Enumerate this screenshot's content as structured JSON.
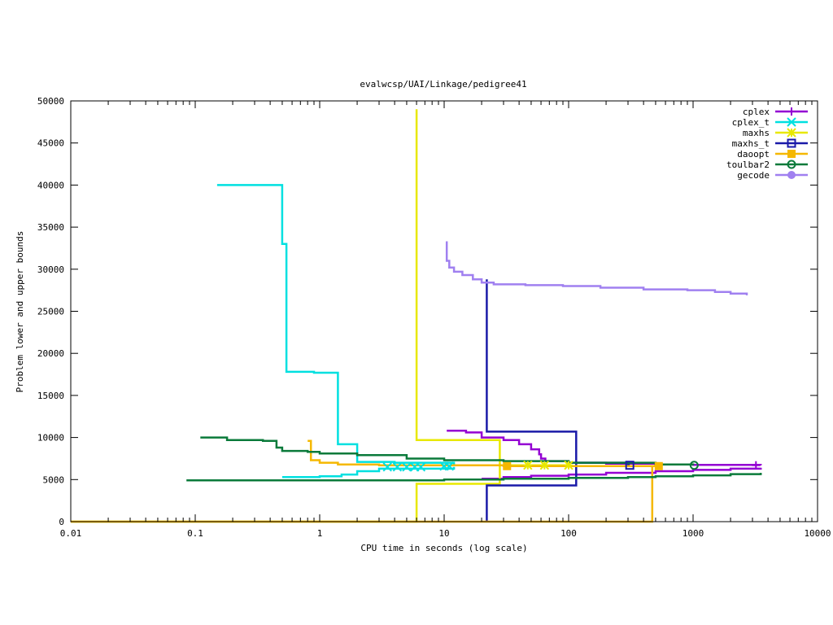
{
  "chart_data": {
    "type": "line",
    "title": "evalwcsp/UAI/Linkage/pedigree41",
    "xlabel": "CPU time in seconds (log scale)",
    "ylabel": "Problem lower and upper bounds",
    "xscale": "log",
    "xlim": [
      0.01,
      10000
    ],
    "ylim": [
      0,
      50000
    ],
    "xticks": [
      0.01,
      0.1,
      1,
      10,
      100,
      1000,
      10000
    ],
    "xtick_labels": [
      "0.01",
      "0.1",
      "1",
      "10",
      "100",
      "1000",
      "10000"
    ],
    "yticks": [
      0,
      5000,
      10000,
      15000,
      20000,
      25000,
      30000,
      35000,
      40000,
      45000,
      50000
    ],
    "ytick_labels": [
      "0",
      "5000",
      "10000",
      "15000",
      "20000",
      "25000",
      "30000",
      "35000",
      "40000",
      "45000",
      "50000"
    ],
    "grid": false,
    "legend_position": "top-right",
    "series": [
      {
        "name": "cplex",
        "color": "#9400d3",
        "marker": "plus",
        "upper": [
          [
            10.5,
            10800
          ],
          [
            15,
            10600
          ],
          [
            20,
            10000
          ],
          [
            30,
            9700
          ],
          [
            40,
            9200
          ],
          [
            50,
            8600
          ],
          [
            58,
            8000
          ],
          [
            60,
            7500
          ],
          [
            65,
            7200
          ],
          [
            100,
            7000
          ],
          [
            200,
            6900
          ],
          [
            500,
            6800
          ],
          [
            1000,
            6750
          ],
          [
            3500,
            6700
          ]
        ],
        "lower": [
          [
            20,
            5100
          ],
          [
            30,
            5300
          ],
          [
            50,
            5450
          ],
          [
            100,
            5600
          ],
          [
            200,
            5800
          ],
          [
            500,
            6000
          ],
          [
            1000,
            6150
          ],
          [
            2000,
            6300
          ],
          [
            3500,
            6400
          ]
        ],
        "markers": [
          [
            3200,
            6700
          ]
        ]
      },
      {
        "name": "cplex_t",
        "color": "#00e0e0",
        "marker": "x",
        "upper": [
          [
            0.15,
            40000
          ],
          [
            0.5,
            40000
          ],
          [
            0.5,
            33000
          ],
          [
            0.54,
            33000
          ],
          [
            0.54,
            17800
          ],
          [
            0.9,
            17800
          ],
          [
            0.9,
            17700
          ],
          [
            1.4,
            17700
          ],
          [
            1.4,
            9200
          ],
          [
            2,
            9200
          ],
          [
            2,
            7100
          ],
          [
            4,
            7000
          ],
          [
            12,
            6800
          ]
        ],
        "lower": [
          [
            0.5,
            5300
          ],
          [
            1,
            5400
          ],
          [
            1.5,
            5600
          ],
          [
            2,
            6000
          ],
          [
            3,
            6300
          ],
          [
            12,
            6500
          ]
        ],
        "markers": [
          [
            3.5,
            6500
          ],
          [
            4.2,
            6500
          ],
          [
            5,
            6500
          ],
          [
            5.8,
            6500
          ],
          [
            6.5,
            6500
          ],
          [
            10,
            6600
          ],
          [
            11,
            6600
          ]
        ]
      },
      {
        "name": "maxhs",
        "color": "#e8e800",
        "marker": "star",
        "upper": [
          [
            6,
            49000
          ],
          [
            6,
            9700
          ],
          [
            28,
            9700
          ],
          [
            28,
            6700
          ],
          [
            100,
            6700
          ]
        ],
        "lower": [
          [
            0.01,
            0
          ],
          [
            6,
            0
          ],
          [
            6,
            4500
          ],
          [
            28,
            4500
          ],
          [
            28,
            6700
          ]
        ],
        "markers": [
          [
            47,
            6700
          ],
          [
            64,
            6700
          ],
          [
            100,
            6700
          ]
        ]
      },
      {
        "name": "maxhs_t",
        "color": "#1a1aa8",
        "marker": "square",
        "upper": [
          [
            22,
            28800
          ],
          [
            22,
            10700
          ],
          [
            115,
            10700
          ],
          [
            115,
            7000
          ],
          [
            300,
            6800
          ],
          [
            310,
            6800
          ]
        ],
        "lower": [
          [
            22,
            0
          ],
          [
            22,
            4300
          ],
          [
            115,
            4300
          ],
          [
            115,
            7000
          ]
        ],
        "markers": [
          [
            310,
            6700
          ]
        ]
      },
      {
        "name": "daoopt",
        "color": "#f5b800",
        "marker": "filled-square",
        "upper": [
          [
            0.8,
            9600
          ],
          [
            0.85,
            7300
          ],
          [
            1,
            7000
          ],
          [
            1.4,
            6800
          ],
          [
            3,
            6700
          ],
          [
            30,
            6600
          ],
          [
            100,
            6600
          ],
          [
            530,
            6600
          ]
        ],
        "lower": [
          [
            0.01,
            0
          ],
          [
            470,
            0
          ],
          [
            470,
            6600
          ],
          [
            530,
            6600
          ]
        ],
        "markers": [
          [
            32,
            6600
          ],
          [
            530,
            6600
          ]
        ]
      },
      {
        "name": "toulbar2",
        "color": "#0a7a3a",
        "marker": "circle",
        "upper": [
          [
            0.11,
            10000
          ],
          [
            0.18,
            9700
          ],
          [
            0.35,
            9600
          ],
          [
            0.45,
            8800
          ],
          [
            0.5,
            8400
          ],
          [
            0.8,
            8300
          ],
          [
            1,
            8100
          ],
          [
            2,
            7900
          ],
          [
            5,
            7500
          ],
          [
            10,
            7300
          ],
          [
            30,
            7200
          ],
          [
            100,
            7000
          ],
          [
            500,
            6800
          ],
          [
            1000,
            6700
          ]
        ],
        "lower": [
          [
            0.085,
            4900
          ],
          [
            1,
            4900
          ],
          [
            10,
            5000
          ],
          [
            30,
            5100
          ],
          [
            100,
            5200
          ],
          [
            300,
            5300
          ],
          [
            500,
            5400
          ],
          [
            1000,
            5500
          ],
          [
            2000,
            5650
          ],
          [
            3500,
            5800
          ]
        ],
        "markers": [
          [
            1020,
            6700
          ]
        ]
      },
      {
        "name": "gecode",
        "color": "#a080f0",
        "marker": "filled-circle",
        "upper": [
          [
            10.3,
            33200
          ],
          [
            10.5,
            31000
          ],
          [
            11,
            30200
          ],
          [
            12,
            29700
          ],
          [
            14,
            29300
          ],
          [
            17,
            28800
          ],
          [
            20,
            28400
          ],
          [
            25,
            28200
          ],
          [
            45,
            28100
          ],
          [
            90,
            28000
          ],
          [
            180,
            27800
          ],
          [
            400,
            27600
          ],
          [
            900,
            27500
          ],
          [
            1500,
            27300
          ],
          [
            2000,
            27100
          ],
          [
            2700,
            26900
          ]
        ],
        "lower": [],
        "markers": []
      }
    ]
  }
}
